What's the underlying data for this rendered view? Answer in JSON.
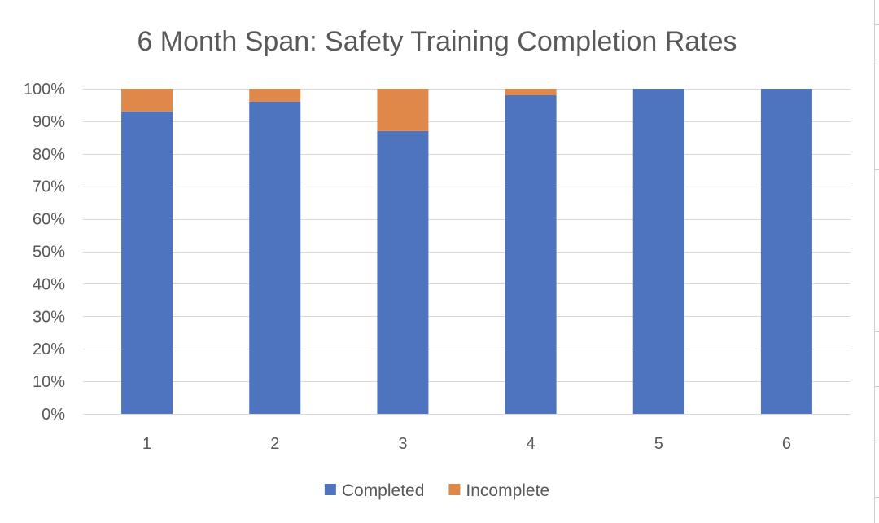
{
  "chart_data": {
    "type": "bar",
    "stacked": true,
    "title": "6 Month Span: Safety Training Completion Rates",
    "xlabel": "",
    "ylabel": "",
    "categories": [
      "1",
      "2",
      "3",
      "4",
      "5",
      "6"
    ],
    "series": [
      {
        "name": "Completed",
        "color": "#4e74bf",
        "values": [
          0.93,
          0.96,
          0.87,
          0.98,
          1.0,
          1.0
        ]
      },
      {
        "name": "Incomplete",
        "color": "#e0884a",
        "values": [
          0.07,
          0.04,
          0.13,
          0.02,
          0.0,
          0.0
        ]
      }
    ],
    "ylim": [
      0,
      1
    ],
    "yticks": [
      0,
      0.1,
      0.2,
      0.3,
      0.4,
      0.5,
      0.6,
      0.7,
      0.8,
      0.9,
      1.0
    ],
    "ytick_labels": [
      "0%",
      "10%",
      "20%",
      "30%",
      "40%",
      "50%",
      "60%",
      "70%",
      "80%",
      "90%",
      "100%"
    ],
    "grid": true,
    "legend_position": "bottom",
    "gridline_color": "#d9d9d9",
    "text_color": "#595959"
  }
}
